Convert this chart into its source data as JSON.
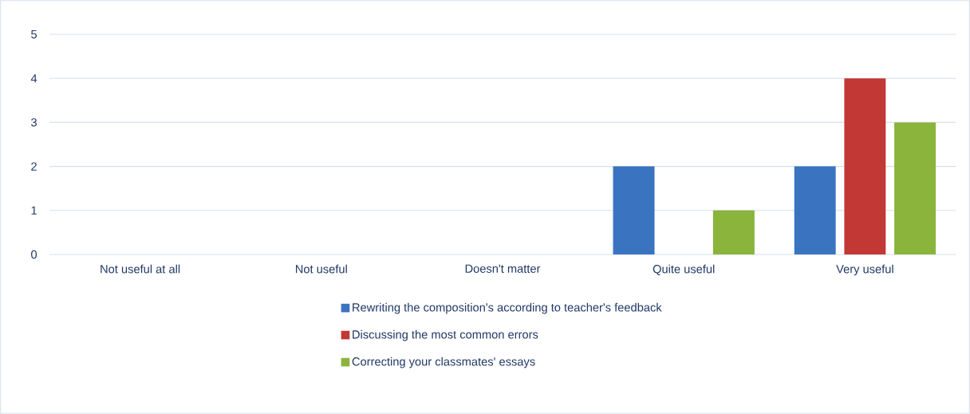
{
  "chart_data": {
    "type": "bar",
    "categories": [
      "Not useful at all",
      "Not useful",
      "Doesn't matter",
      "Quite useful",
      "Very useful"
    ],
    "series": [
      {
        "name": "Rewriting the composition's according to teacher's feedback",
        "color": "#3a74c0",
        "values": [
          0,
          0,
          0,
          2,
          2
        ]
      },
      {
        "name": "Discussing the most common errors",
        "color": "#c23834",
        "values": [
          0,
          0,
          0,
          0,
          4
        ]
      },
      {
        "name": "Correcting your classmates' essays",
        "color": "#8ab43c",
        "values": [
          0,
          0,
          0,
          1,
          3
        ]
      }
    ],
    "ylim": [
      0,
      5
    ],
    "yticks": [
      0,
      1,
      2,
      3,
      4,
      5
    ],
    "grid": "y",
    "legend": "bottom"
  }
}
